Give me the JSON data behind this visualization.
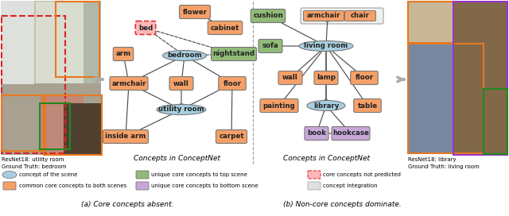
{
  "C_BLUE": "#a8cfe0",
  "C_ORANGE": "#f5a068",
  "C_GREEN": "#90bb78",
  "C_PURPLE": "#c8a8d8",
  "C_RED_BG": "#ffb8b8",
  "C_DASHED": "#dd3333",
  "C_GRAY": "#e0e0e0",
  "left_label1": "ResNet18: utility room",
  "left_label2": "Ground Truth: bedroom",
  "right_label1": "ResNet18: library",
  "right_label2": "Ground Truth: living room",
  "conceptnet": "Concepts in ConceptNet",
  "caption_a": "(a) Core concepts absent.",
  "caption_b": "(b) Non-core concepts dominate.",
  "leg1": "concept of the scene",
  "leg2": "common core concepts to both scenes",
  "leg3": "unique core concepts to top scene",
  "leg4": "unique core concepts to bottom scene",
  "leg5": "core concepts not predicted",
  "leg6": "concept integration"
}
